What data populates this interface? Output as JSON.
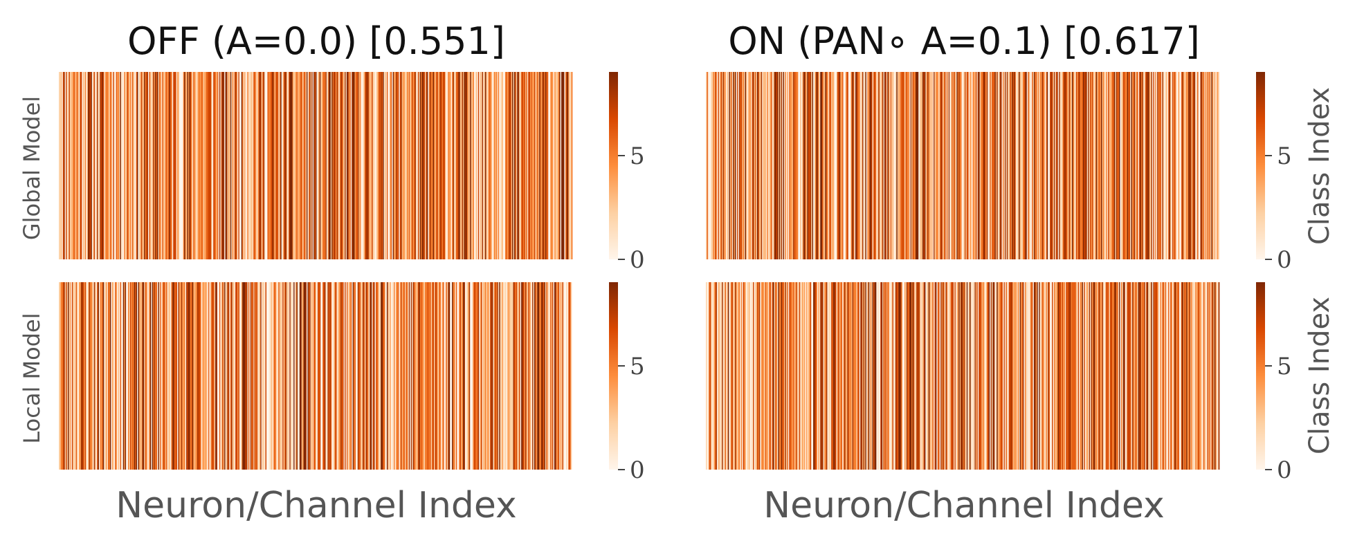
{
  "chart_data": [
    {
      "type": "heatmap",
      "title": "OFF (A=0.0) [0.551]",
      "xlabel": "Neuron/Channel Index",
      "rows": [
        {
          "ylabel": "Global Model",
          "colorbar_label": "",
          "seed": 11
        },
        {
          "ylabel": "Local Model",
          "colorbar_label": "",
          "seed": 23
        }
      ],
      "n_columns": 512,
      "value_range": [
        0,
        9
      ],
      "colorbar_ticks": [
        "0",
        "5"
      ],
      "colormap": "Oranges"
    },
    {
      "type": "heatmap",
      "title": "ON (PAN∘ A=0.1) [0.617]",
      "xlabel": "Neuron/Channel Index",
      "rows": [
        {
          "ylabel": "",
          "colorbar_label": "Class Index",
          "seed": 37
        },
        {
          "ylabel": "",
          "colorbar_label": "Class Index",
          "seed": 53
        }
      ],
      "n_columns": 512,
      "value_range": [
        0,
        9
      ],
      "colorbar_ticks": [
        "0",
        "5"
      ],
      "colormap": "Oranges"
    }
  ],
  "colors": {
    "low": "#fff5eb",
    "mid_low": "#fdd0a2",
    "mid": "#fd8d3c",
    "mid_high": "#d94801",
    "high": "#7f2704"
  }
}
